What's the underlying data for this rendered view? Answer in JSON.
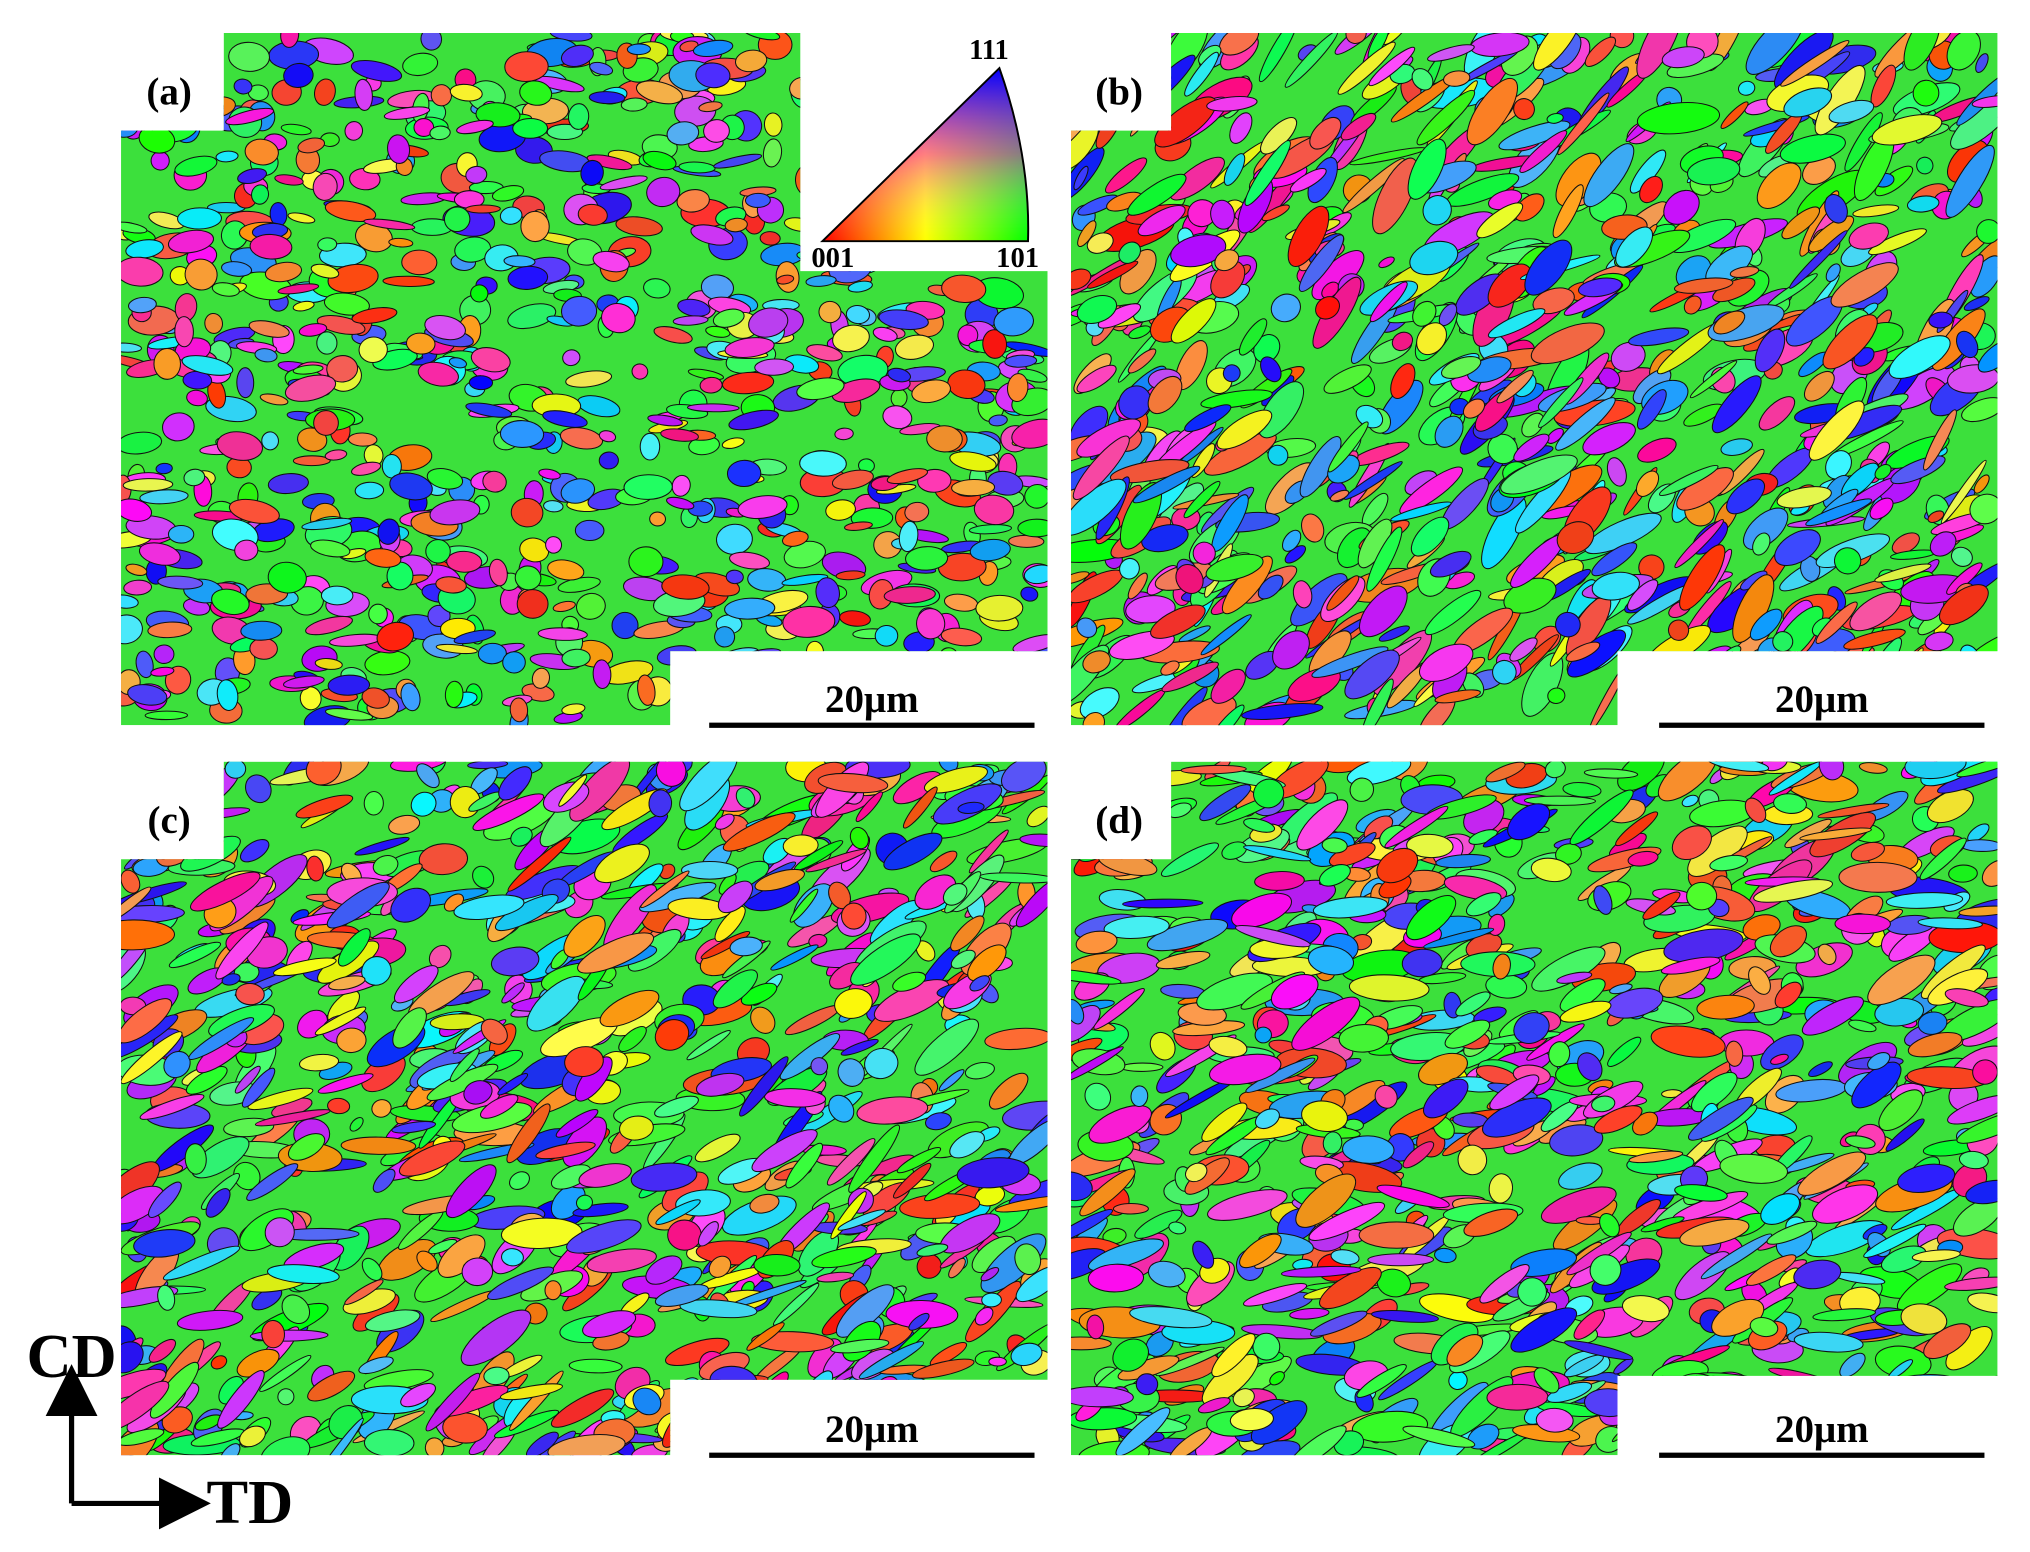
{
  "panels": [
    {
      "label": "(a)",
      "scale_bar": "20μm"
    },
    {
      "label": "(b)",
      "scale_bar": "20μm"
    },
    {
      "label": "(c)",
      "scale_bar": "20μm"
    },
    {
      "label": "(d)",
      "scale_bar": "20μm"
    }
  ],
  "ipf_key": {
    "top": "111",
    "left": "001",
    "right": "101"
  },
  "axes": {
    "vertical": "CD",
    "horizontal": "TD"
  }
}
